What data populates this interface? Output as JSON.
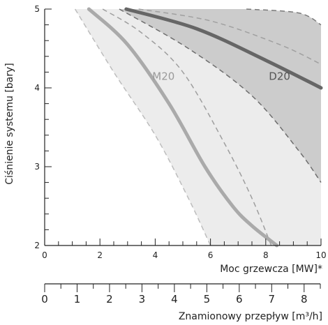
{
  "chart_data": {
    "type": "area",
    "ylabel": "Ciśnienie systemu [bary]",
    "xlabel": "Moc grzewcza [MW]*",
    "x2label": "Znamionowy przepływ [m³/h]",
    "xlim": [
      0,
      10
    ],
    "ylim": [
      2,
      5
    ],
    "x2lim": [
      0,
      8.5
    ],
    "x_ticks": [
      "0",
      "2",
      "4",
      "6",
      "8",
      "10"
    ],
    "y_ticks": [
      "2",
      "3",
      "4",
      "5"
    ],
    "x2_ticks": [
      "0",
      "1",
      "2",
      "3",
      "4",
      "5",
      "6",
      "7",
      "8"
    ],
    "grid": false,
    "regions": [
      {
        "name": "M20",
        "fill": "#ececec",
        "upper_dashed": [
          [
            2.1,
            5
          ],
          [
            3.5,
            4.7
          ],
          [
            5,
            4.2
          ],
          [
            6.5,
            3.3
          ],
          [
            7.5,
            2.6
          ],
          [
            8.2,
            2
          ]
        ],
        "lower_dashed": [
          [
            1.1,
            5
          ],
          [
            2.5,
            4.2
          ],
          [
            4,
            3.4
          ],
          [
            5.2,
            2.6
          ],
          [
            6,
            2
          ]
        ],
        "line": [
          [
            1.6,
            5
          ],
          [
            3,
            4.55
          ],
          [
            4.5,
            3.8
          ],
          [
            5.8,
            3.0
          ],
          [
            6.8,
            2.5
          ],
          [
            7.5,
            2.25
          ],
          [
            8.4,
            2
          ]
        ],
        "label_at": [
          4.3,
          4.1
        ],
        "line_color": "#aaaaaa"
      },
      {
        "name": "D20",
        "fill": "#cccccc",
        "upper_dashed": [
          [
            3.4,
            5
          ],
          [
            6,
            4.85
          ],
          [
            8.5,
            4.55
          ],
          [
            10,
            4.3
          ]
        ],
        "lower_dashed": [
          [
            2.7,
            5
          ],
          [
            5.2,
            4.5
          ],
          [
            7.5,
            3.9
          ],
          [
            9.2,
            3.2
          ],
          [
            10,
            2.8
          ]
        ],
        "line": [
          [
            2.95,
            5
          ],
          [
            5.5,
            4.75
          ],
          [
            8,
            4.35
          ],
          [
            10,
            4
          ]
        ],
        "label_at": [
          8.5,
          4.1
        ],
        "line_color": "#666666"
      }
    ],
    "outer_boundary": [
      [
        7.3,
        5
      ],
      [
        9.2,
        4.95
      ],
      [
        10,
        4.8
      ]
    ]
  }
}
